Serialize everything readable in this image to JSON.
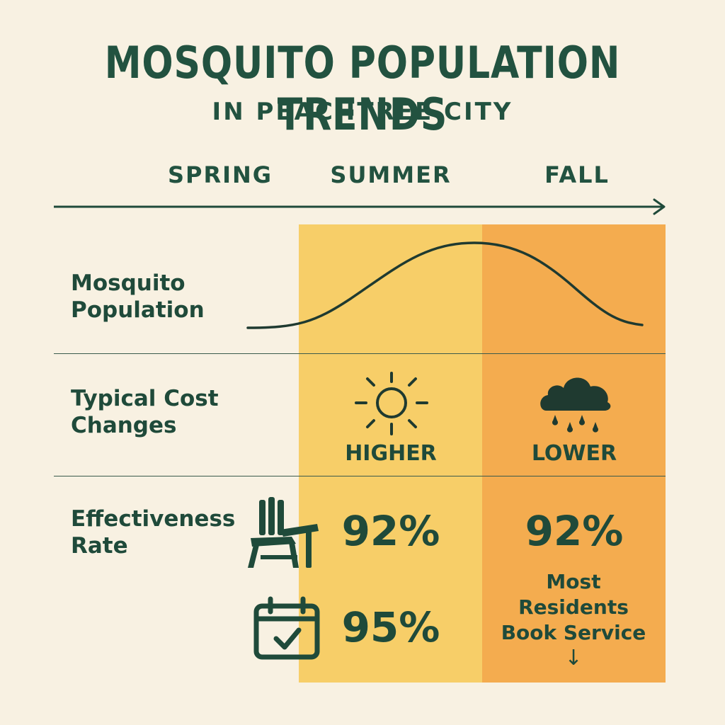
{
  "header": {
    "title": "MOSQUITO POPULATION TRENDS",
    "subtitle": "IN PEACHTREE CITY"
  },
  "seasons": [
    "SPRING",
    "SUMMER",
    "FALL"
  ],
  "rows": {
    "population": {
      "label_line1": "Mosquito",
      "label_line2": "Population"
    },
    "cost": {
      "label_line1": "Typical Cost",
      "label_line2": "Changes",
      "summer": "HIGHER",
      "fall": "LOWER"
    },
    "effectiveness": {
      "label_line1": "Effectiveness",
      "label_line2": "Rate",
      "summer_top": "92%",
      "summer_bottom": "95%",
      "fall_top": "92%"
    }
  },
  "fall_note": {
    "line1": "Most",
    "line2": "Residents",
    "line3": "Book Service",
    "arrow": "↓"
  },
  "icons": {
    "sun": "sun-icon",
    "rain": "rain-cloud-icon",
    "chair": "adirondack-chair-icon",
    "calendar": "calendar-check-icon"
  },
  "colors": {
    "background": "#f8f1e2",
    "text": "#1f4a3a",
    "summer_band": "#f7ce68",
    "fall_band": "#f4ac4f"
  }
}
